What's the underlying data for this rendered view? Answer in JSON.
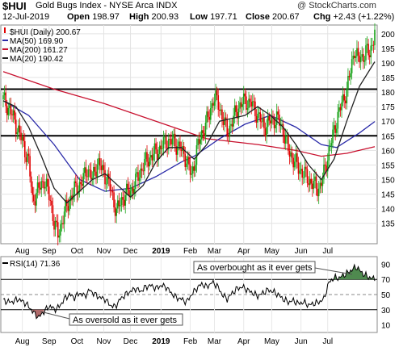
{
  "header": {
    "symbol": "$HUI",
    "name": "Gold Bugs Index - NYSE Arca INDX",
    "watermark": "@ StockCharts.com",
    "date": "12-Jul-2019",
    "open_label": "Open",
    "open": "198.97",
    "high_label": "High",
    "high": "200.93",
    "low_label": "Low",
    "low": "197.71",
    "close_label": "Close",
    "close": "200.67",
    "chg_label": "Chg",
    "chg": "+2.43 (+1.22%)"
  },
  "colors": {
    "up": "#19a319",
    "down": "#e00000",
    "ma50": "#2a2aa8",
    "ma200": "#c8102e",
    "ma20": "#222222",
    "rsi": "#000000",
    "overbought_fill": "#4f8a4f",
    "oversold_fill": "#b06a6a"
  },
  "chart_data": [
    {
      "type": "candlestick",
      "legend": [
        {
          "key": "price",
          "text": "$HUI (Daily) 200.67"
        },
        {
          "key": "ma50",
          "text": "MA(50) 169.90"
        },
        {
          "key": "ma200",
          "text": "MA(200) 161.27"
        },
        {
          "key": "ma20",
          "text": "MA(20) 190.42"
        }
      ],
      "yticks": [
        135,
        140,
        145,
        150,
        155,
        160,
        165,
        170,
        175,
        180,
        185,
        190,
        195,
        200
      ],
      "ylim": [
        128,
        203
      ],
      "xticks": [
        "Aug",
        "Sep",
        "Oct",
        "Nov",
        "Dec",
        "2019",
        "Feb",
        "Mar",
        "Apr",
        "May",
        "Jun",
        "Jul"
      ],
      "xtick_bold": "2019",
      "horizontal_lines": [
        181,
        165
      ],
      "close_series": [
        [
          0,
          177.5
        ],
        [
          5,
          174
        ],
        [
          10,
          169
        ],
        [
          15,
          163
        ],
        [
          20,
          156
        ],
        [
          23,
          143
        ],
        [
          27,
          146
        ],
        [
          32,
          150
        ],
        [
          37,
          143
        ],
        [
          40,
          135
        ],
        [
          43,
          131
        ],
        [
          47,
          137
        ],
        [
          52,
          143
        ],
        [
          57,
          147
        ],
        [
          62,
          149
        ],
        [
          66,
          154
        ],
        [
          70,
          150
        ],
        [
          74,
          156
        ],
        [
          78,
          153
        ],
        [
          82,
          150
        ],
        [
          86,
          144
        ],
        [
          89,
          139
        ],
        [
          92,
          142
        ],
        [
          96,
          145
        ],
        [
          100,
          146
        ],
        [
          105,
          150
        ],
        [
          110,
          155
        ],
        [
          116,
          158
        ],
        [
          122,
          160
        ],
        [
          128,
          163
        ],
        [
          134,
          163
        ],
        [
          140,
          160
        ],
        [
          144,
          157
        ],
        [
          148,
          151
        ],
        [
          152,
          160
        ],
        [
          157,
          167
        ],
        [
          162,
          172
        ],
        [
          165,
          178
        ],
        [
          168,
          177
        ],
        [
          172,
          172
        ],
        [
          176,
          166
        ],
        [
          180,
          170
        ],
        [
          185,
          175
        ],
        [
          190,
          177
        ],
        [
          195,
          176
        ],
        [
          200,
          172
        ],
        [
          205,
          168
        ],
        [
          210,
          170
        ],
        [
          215,
          171
        ],
        [
          220,
          167
        ],
        [
          224,
          160
        ],
        [
          228,
          157
        ],
        [
          232,
          154
        ],
        [
          236,
          152
        ],
        [
          240,
          150
        ],
        [
          244,
          148
        ],
        [
          248,
          147
        ],
        [
          251,
          150
        ],
        [
          255,
          158
        ],
        [
          259,
          165
        ],
        [
          263,
          172
        ],
        [
          267,
          177
        ],
        [
          270,
          181
        ],
        [
          273,
          187
        ],
        [
          276,
          195
        ],
        [
          279,
          191
        ],
        [
          282,
          192
        ],
        [
          285,
          194
        ],
        [
          288,
          193
        ],
        [
          290,
          197
        ],
        [
          292,
          200.7
        ]
      ],
      "ma20_series": [
        [
          0,
          177
        ],
        [
          10,
          175
        ],
        [
          20,
          168
        ],
        [
          30,
          158
        ],
        [
          40,
          147
        ],
        [
          50,
          142
        ],
        [
          60,
          146
        ],
        [
          70,
          150
        ],
        [
          80,
          152
        ],
        [
          90,
          148
        ],
        [
          100,
          144
        ],
        [
          110,
          148
        ],
        [
          120,
          156
        ],
        [
          130,
          161
        ],
        [
          140,
          161
        ],
        [
          150,
          157
        ],
        [
          160,
          162
        ],
        [
          170,
          170
        ],
        [
          180,
          171
        ],
        [
          190,
          172
        ],
        [
          200,
          175
        ],
        [
          210,
          172
        ],
        [
          220,
          168
        ],
        [
          230,
          162
        ],
        [
          240,
          155
        ],
        [
          250,
          150
        ],
        [
          260,
          157
        ],
        [
          270,
          170
        ],
        [
          280,
          182
        ],
        [
          292,
          190.4
        ]
      ],
      "ma50_series": [
        [
          0,
          177
        ],
        [
          20,
          172
        ],
        [
          40,
          162
        ],
        [
          60,
          150
        ],
        [
          80,
          146
        ],
        [
          100,
          147
        ],
        [
          120,
          151
        ],
        [
          140,
          156
        ],
        [
          150,
          158
        ],
        [
          170,
          164
        ],
        [
          190,
          169
        ],
        [
          210,
          172
        ],
        [
          230,
          168
        ],
        [
          250,
          162
        ],
        [
          262,
          161
        ],
        [
          280,
          166
        ],
        [
          292,
          169.9
        ]
      ],
      "ma200_series": [
        [
          0,
          187
        ],
        [
          40,
          181
        ],
        [
          80,
          176
        ],
        [
          120,
          170
        ],
        [
          160,
          164
        ],
        [
          200,
          162
        ],
        [
          230,
          160
        ],
        [
          250,
          158
        ],
        [
          270,
          159
        ],
        [
          292,
          161.3
        ]
      ]
    },
    {
      "type": "line",
      "legend": [
        {
          "key": "rsi",
          "text": "RSI(14) 71.36"
        }
      ],
      "yticks": [
        10,
        30,
        50,
        70,
        90
      ],
      "ylim": [
        0,
        100
      ],
      "overbought": 70,
      "oversold": 30,
      "midline": 50,
      "annotations": [
        {
          "text": "As overbought as it ever gets"
        },
        {
          "text": "As oversold as it ever gets"
        }
      ],
      "xticks": [
        "Aug",
        "Sep",
        "Oct",
        "Nov",
        "Dec",
        "2019",
        "Feb",
        "Mar",
        "Apr",
        "May",
        "Jun",
        "Jul"
      ],
      "xtick_bold": "2019",
      "series": [
        [
          0,
          42
        ],
        [
          6,
          40
        ],
        [
          12,
          44
        ],
        [
          18,
          38
        ],
        [
          22,
          30
        ],
        [
          25,
          24
        ],
        [
          28,
          20
        ],
        [
          31,
          26
        ],
        [
          34,
          31
        ],
        [
          37,
          35
        ],
        [
          40,
          30
        ],
        [
          44,
          34
        ],
        [
          48,
          44
        ],
        [
          52,
          50
        ],
        [
          56,
          46
        ],
        [
          60,
          52
        ],
        [
          64,
          48
        ],
        [
          68,
          56
        ],
        [
          72,
          50
        ],
        [
          76,
          46
        ],
        [
          80,
          44
        ],
        [
          84,
          36
        ],
        [
          88,
          34
        ],
        [
          92,
          44
        ],
        [
          96,
          50
        ],
        [
          100,
          54
        ],
        [
          104,
          58
        ],
        [
          108,
          54
        ],
        [
          112,
          60
        ],
        [
          116,
          62
        ],
        [
          120,
          58
        ],
        [
          124,
          62
        ],
        [
          128,
          60
        ],
        [
          132,
          52
        ],
        [
          136,
          46
        ],
        [
          140,
          44
        ],
        [
          144,
          40
        ],
        [
          148,
          50
        ],
        [
          152,
          58
        ],
        [
          156,
          64
        ],
        [
          160,
          60
        ],
        [
          164,
          66
        ],
        [
          168,
          62
        ],
        [
          172,
          50
        ],
        [
          176,
          44
        ],
        [
          180,
          52
        ],
        [
          184,
          58
        ],
        [
          188,
          60
        ],
        [
          192,
          56
        ],
        [
          196,
          52
        ],
        [
          200,
          48
        ],
        [
          204,
          52
        ],
        [
          208,
          56
        ],
        [
          212,
          54
        ],
        [
          216,
          50
        ],
        [
          220,
          44
        ],
        [
          224,
          40
        ],
        [
          228,
          42
        ],
        [
          232,
          38
        ],
        [
          236,
          40
        ],
        [
          240,
          36
        ],
        [
          244,
          38
        ],
        [
          248,
          40
        ],
        [
          252,
          44
        ],
        [
          256,
          66
        ],
        [
          260,
          72
        ],
        [
          264,
          72
        ],
        [
          268,
          76
        ],
        [
          272,
          80
        ],
        [
          275,
          84
        ],
        [
          278,
          86
        ],
        [
          281,
          80
        ],
        [
          284,
          76
        ],
        [
          287,
          73
        ],
        [
          290,
          71
        ],
        [
          292,
          71.4
        ]
      ]
    }
  ]
}
